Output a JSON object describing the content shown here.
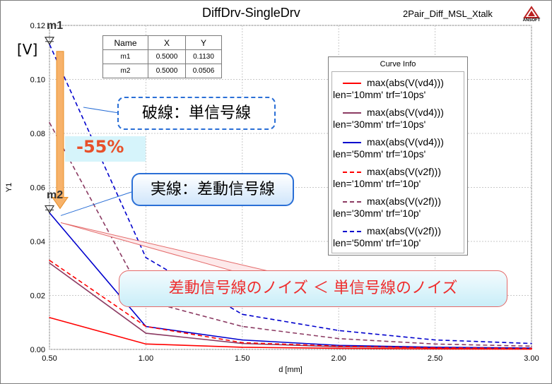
{
  "header": {
    "title": "DiffDrv-SingleDrv",
    "project": "2Pair_Diff_MSL_Xtalk",
    "logo_text": "ANSOFT"
  },
  "annotations": {
    "unit": "[V]",
    "dashed_note": "破線：単信号線",
    "solid_note": "実線：差動信号線",
    "reduction": "-55%",
    "comparison": "差動信号線のノイズ ＜ 単信号線のノイズ"
  },
  "markers": {
    "columns": [
      "Name",
      "X",
      "Y"
    ],
    "rows": [
      {
        "name": "m1",
        "x": "0.5000",
        "y": "0.1130"
      },
      {
        "name": "m2",
        "x": "0.5000",
        "y": "0.0506"
      }
    ]
  },
  "legend": {
    "title": "Curve Info",
    "items": [
      {
        "line1": "max(abs(V(vd4)))",
        "line2": "len='10mm' trf='10ps'",
        "color": "#ff0000",
        "dash": "solid"
      },
      {
        "line1": "max(abs(V(vd4)))",
        "line2": "len='30mm' trf='10ps'",
        "color": "#8b3a62",
        "dash": "solid"
      },
      {
        "line1": "max(abs(V(vd4)))",
        "line2": "len='50mm' trf='10ps'",
        "color": "#0000cd",
        "dash": "solid"
      },
      {
        "line1": "max(abs(V(v2f)))",
        "line2": "len='10mm' trf='10p'",
        "color": "#ff0000",
        "dash": "dashed"
      },
      {
        "line1": "max(abs(V(v2f)))",
        "line2": "len='30mm' trf='10p'",
        "color": "#8b3a62",
        "dash": "dashed"
      },
      {
        "line1": "max(abs(V(v2f)))",
        "line2": "len='50mm' trf='10p'",
        "color": "#0000cd",
        "dash": "dashed"
      }
    ]
  },
  "chart_data": {
    "type": "line",
    "title": "DiffDrv-SingleDrv",
    "xlabel": "d [mm]",
    "ylabel": "Y1",
    "xlim": [
      0.5,
      3.0
    ],
    "ylim": [
      0.0,
      0.12
    ],
    "xticks": [
      "0.50",
      "1.00",
      "1.50",
      "2.00",
      "2.50",
      "3.00"
    ],
    "yticks": [
      "0.00",
      "0.02",
      "0.04",
      "0.06",
      "0.08",
      "0.10",
      "0.12"
    ],
    "grid": true,
    "legend_position": "right",
    "x": [
      0.5,
      1.0,
      1.5,
      2.0,
      2.5,
      3.0
    ],
    "series": [
      {
        "name": "max(abs(V(vd4))) len='10mm' trf='10ps'",
        "color": "#ff0000",
        "dash": "solid",
        "values": [
          0.0118,
          0.002,
          0.0008,
          0.0004,
          0.0002,
          0.0001
        ]
      },
      {
        "name": "max(abs(V(vd4))) len='30mm' trf='10ps'",
        "color": "#8b3a62",
        "dash": "solid",
        "values": [
          0.032,
          0.006,
          0.0022,
          0.001,
          0.0006,
          0.0004
        ]
      },
      {
        "name": "max(abs(V(vd4))) len='50mm' trf='10ps'",
        "color": "#0000cd",
        "dash": "solid",
        "values": [
          0.0506,
          0.0085,
          0.0035,
          0.0015,
          0.0008,
          0.0005
        ]
      },
      {
        "name": "max(abs(V(v2f))) len='10mm' trf='10p'",
        "color": "#ff0000",
        "dash": "dashed",
        "values": [
          0.033,
          0.0085,
          0.0025,
          0.0012,
          0.0006,
          0.0004
        ]
      },
      {
        "name": "max(abs(V(v2f))) len='30mm' trf='10p'",
        "color": "#8b3a62",
        "dash": "dashed",
        "values": [
          0.084,
          0.018,
          0.0085,
          0.004,
          0.002,
          0.0012
        ]
      },
      {
        "name": "max(abs(V(v2f))) len='50mm' trf='10p'",
        "color": "#0000cd",
        "dash": "dashed",
        "values": [
          0.113,
          0.034,
          0.013,
          0.007,
          0.0035,
          0.0022
        ]
      }
    ],
    "markers": [
      {
        "name": "m1",
        "x": 0.5,
        "y": 0.113
      },
      {
        "name": "m2",
        "x": 0.5,
        "y": 0.0506
      }
    ]
  }
}
